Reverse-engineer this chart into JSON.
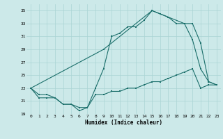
{
  "xlabel": "Humidex (Indice chaleur)",
  "bg_color": "#cce9e9",
  "grid_color": "#aad4d4",
  "line_color": "#1a6e6a",
  "xlim": [
    -0.5,
    23.5
  ],
  "ylim": [
    19,
    36
  ],
  "yticks": [
    19,
    21,
    23,
    25,
    27,
    29,
    31,
    33,
    35
  ],
  "xticks": [
    0,
    1,
    2,
    3,
    4,
    5,
    6,
    7,
    8,
    9,
    10,
    11,
    12,
    13,
    14,
    15,
    16,
    17,
    18,
    19,
    20,
    21,
    22,
    23
  ],
  "line1_x": [
    0,
    1,
    2,
    3,
    4,
    5,
    6,
    7,
    8,
    9,
    10,
    11,
    12,
    13,
    14,
    15,
    16,
    17,
    18,
    19,
    20,
    21,
    22,
    23
  ],
  "line1_y": [
    23,
    21.5,
    21.5,
    21.5,
    20.5,
    20.5,
    20,
    20,
    22,
    22,
    22.5,
    22.5,
    23,
    23,
    23.5,
    24,
    24,
    24.5,
    25,
    25.5,
    26,
    23,
    23.5,
    23.5
  ],
  "line2_x": [
    0,
    1,
    2,
    3,
    4,
    5,
    6,
    7,
    8,
    9,
    10,
    11,
    12,
    13,
    14,
    15,
    16,
    17,
    18,
    19,
    20,
    21,
    22,
    23
  ],
  "line2_y": [
    23,
    22,
    22,
    21.5,
    20.5,
    20.5,
    19.5,
    20,
    23,
    26,
    31,
    31.5,
    32.5,
    32.5,
    33.5,
    35,
    34.5,
    34,
    33,
    33,
    30.5,
    26,
    24,
    23.5
  ],
  "line3_x": [
    0,
    9,
    15,
    16,
    19,
    20,
    21,
    22,
    23
  ],
  "line3_y": [
    23,
    29,
    35,
    34.5,
    33,
    33,
    30,
    24,
    23.5
  ],
  "marker_size": 2.0,
  "line_width": 0.8
}
